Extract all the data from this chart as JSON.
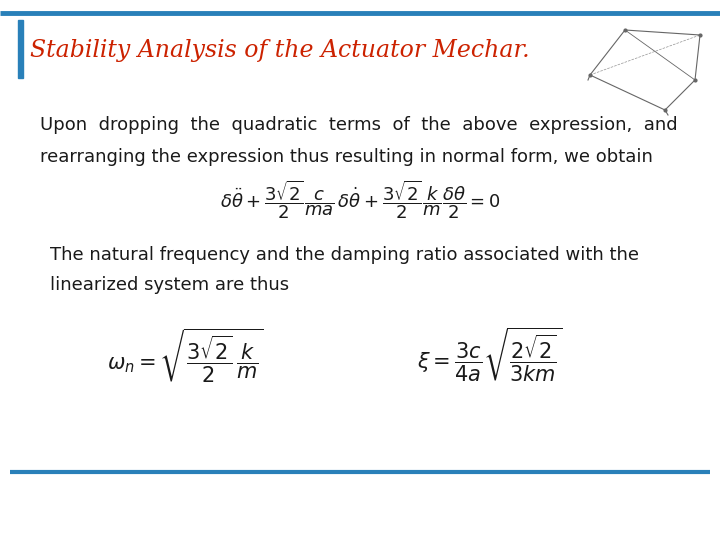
{
  "title": "Stability Analysis of the Actuator Mechar.",
  "title_color": "#cc2200",
  "title_fontsize": 17,
  "background_color": "#ffffff",
  "line_color": "#2980b9",
  "text_color": "#1a1a1a",
  "body_text_1": "Upon  dropping  the  quadratic  terms  of  the  above  expression,  and",
  "body_text_2": "rearranging the expression thus resulting in normal form, we obtain",
  "body_text_3": "The natural frequency and the damping ratio associated with the",
  "body_text_4": "linearized system are thus",
  "fontsize_body": 13,
  "fontsize_eq1": 13,
  "fontsize_eq2": 15
}
